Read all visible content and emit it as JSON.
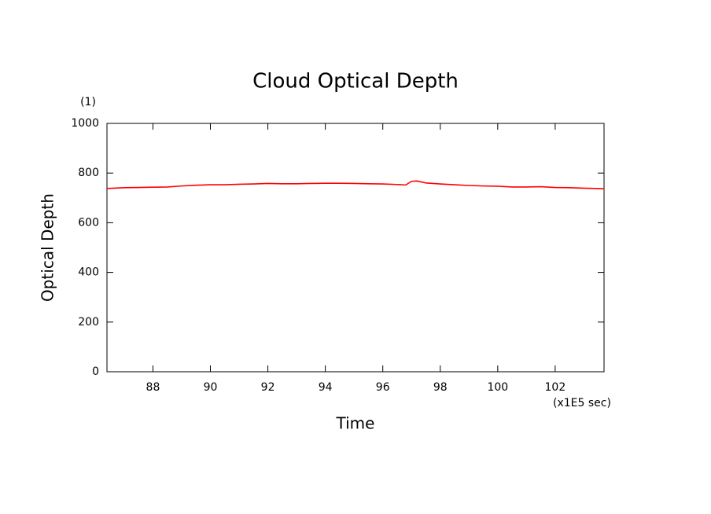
{
  "chart_data": {
    "type": "line",
    "title": "Cloud Optical Depth",
    "y_unit": "(1)",
    "y_label": "Optical Depth",
    "x_label": "Time",
    "x_unit": "(x1E5 sec)",
    "x": [
      86.4,
      87,
      87.5,
      88,
      88.5,
      89,
      89.5,
      90,
      90.5,
      91,
      91.5,
      92,
      92.5,
      93,
      93.5,
      94,
      94.5,
      95,
      95.5,
      96,
      96.5,
      96.8,
      97,
      97.2,
      97.5,
      98,
      98.5,
      99,
      99.5,
      100,
      100.5,
      101,
      101.5,
      102,
      102.5,
      103,
      103.7
    ],
    "series": [
      {
        "name": "Optical Depth",
        "color": "#ff0000",
        "values": [
          738,
          741,
          742,
          743,
          744,
          748,
          751,
          753,
          753,
          755,
          756,
          758,
          757,
          757,
          758,
          759,
          759,
          758,
          757,
          756,
          754,
          752,
          767,
          768,
          760,
          756,
          753,
          750,
          748,
          747,
          744,
          744,
          745,
          742,
          741,
          739,
          737
        ]
      }
    ],
    "xlim": [
      86.4,
      103.7
    ],
    "xticks": [
      88,
      90,
      92,
      94,
      96,
      98,
      100,
      102
    ],
    "ylim": [
      0,
      1000
    ],
    "yticks": [
      0,
      200,
      400,
      600,
      800,
      1000
    ]
  }
}
